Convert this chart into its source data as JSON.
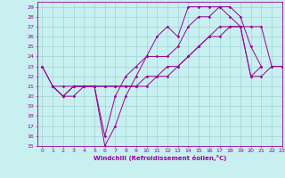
{
  "xlabel": "Windchill (Refroidissement éolien,°C)",
  "xlim": [
    -0.5,
    23
  ],
  "ylim": [
    15,
    29.5
  ],
  "yticks": [
    15,
    16,
    17,
    18,
    19,
    20,
    21,
    22,
    23,
    24,
    25,
    26,
    27,
    28,
    29
  ],
  "xticks": [
    0,
    1,
    2,
    3,
    4,
    5,
    6,
    7,
    8,
    9,
    10,
    11,
    12,
    13,
    14,
    15,
    16,
    17,
    18,
    19,
    20,
    21,
    22,
    23
  ],
  "bg_color": "#c8f0f0",
  "line_color": "#990099",
  "grid_color": "#99cccc",
  "lines": [
    {
      "x": [
        0,
        1,
        2,
        3,
        4,
        5,
        6,
        7,
        8,
        9,
        10,
        11,
        12,
        13,
        14,
        15,
        16,
        17,
        18,
        19,
        20,
        21
      ],
      "y": [
        23,
        21,
        20,
        21,
        21,
        21,
        16,
        20,
        22,
        23,
        24,
        26,
        27,
        26,
        29,
        29,
        29,
        29,
        29,
        28,
        25,
        23
      ]
    },
    {
      "x": [
        0,
        1,
        2,
        3,
        4,
        5,
        6,
        7,
        8,
        9,
        10,
        11,
        12,
        13,
        14,
        15,
        16,
        17,
        18,
        19,
        20,
        21
      ],
      "y": [
        23,
        21,
        20,
        20,
        21,
        21,
        15,
        17,
        20,
        22,
        24,
        24,
        24,
        25,
        27,
        28,
        28,
        29,
        28,
        27,
        22,
        23
      ]
    },
    {
      "x": [
        1,
        2,
        3,
        4,
        5,
        6,
        7,
        8,
        9,
        10,
        11,
        12,
        13,
        14,
        15,
        16,
        17,
        18,
        19,
        20,
        21,
        22,
        23
      ],
      "y": [
        21,
        20,
        21,
        21,
        21,
        21,
        21,
        21,
        21,
        22,
        22,
        23,
        23,
        24,
        25,
        26,
        27,
        27,
        27,
        27,
        27,
        23,
        23
      ]
    },
    {
      "x": [
        1,
        2,
        3,
        4,
        5,
        6,
        7,
        8,
        9,
        10,
        11,
        12,
        13,
        14,
        15,
        16,
        17,
        18,
        19,
        20,
        21,
        22,
        23
      ],
      "y": [
        21,
        21,
        21,
        21,
        21,
        21,
        21,
        21,
        21,
        21,
        22,
        22,
        23,
        24,
        25,
        26,
        26,
        27,
        27,
        22,
        22,
        23,
        23
      ]
    }
  ],
  "marker": "D",
  "marker_size": 1.5,
  "line_width": 0.7,
  "xlabel_fontsize": 5.0,
  "tick_fontsize": 4.5
}
